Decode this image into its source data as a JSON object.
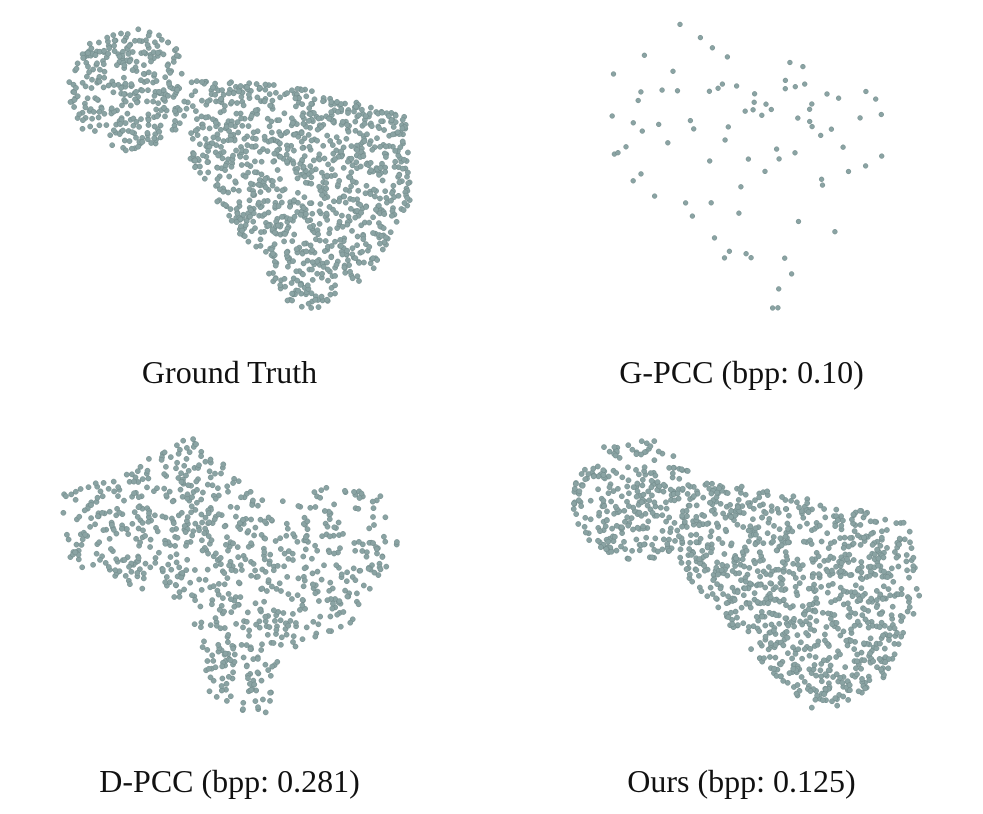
{
  "figure": {
    "panels": [
      {
        "id": "ground-truth",
        "caption": "Ground Truth"
      },
      {
        "id": "gpcc",
        "caption": "G-PCC (bpp: 0.10)"
      },
      {
        "id": "dpcc",
        "caption": "D-PCC (bpp: 0.281)"
      },
      {
        "id": "ours",
        "caption": "Ours (bpp: 0.125)"
      }
    ],
    "colors": {
      "point": "#8aa3a3",
      "point_edge": "#6f8888",
      "background": "#ffffff"
    }
  }
}
